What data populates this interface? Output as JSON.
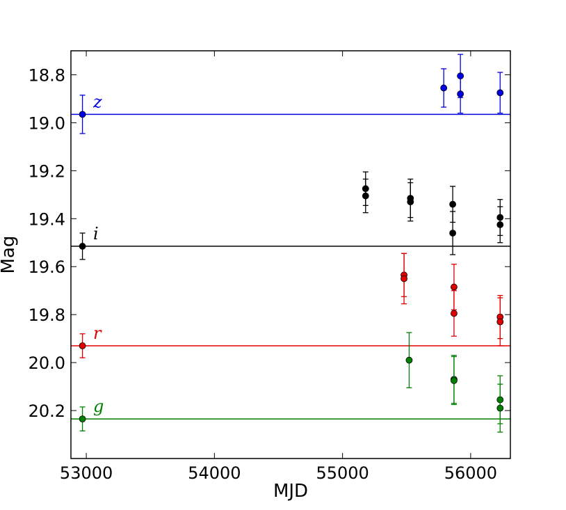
{
  "chart_data": {
    "type": "scatter",
    "title": "",
    "xlabel": "MJD",
    "ylabel": "Mag",
    "xlim": [
      52880,
      56310
    ],
    "ylim": [
      20.4,
      18.7
    ],
    "y_inverted": true,
    "grid": false,
    "legend": "none",
    "x_ticks": [
      53000,
      54000,
      55000,
      56000
    ],
    "x_tick_labels": [
      "53000",
      "54000",
      "55000",
      "56000"
    ],
    "y_ticks": [
      18.8,
      19.0,
      19.2,
      19.4,
      19.6,
      19.8,
      20.0,
      20.2
    ],
    "y_tick_labels": [
      "18.8",
      "19.0",
      "19.2",
      "19.4",
      "19.6",
      "19.8",
      "20.0",
      "20.2"
    ],
    "series": [
      {
        "name": "z",
        "color": "#0000e0",
        "reference_mag": 18.965,
        "points": [
          {
            "x": 52970,
            "y": 18.965,
            "err": 0.08
          },
          {
            "x": 55790,
            "y": 18.855,
            "err": 0.08
          },
          {
            "x": 55920,
            "y": 18.805,
            "err": 0.09
          },
          {
            "x": 55920,
            "y": 18.88,
            "err": 0.08
          },
          {
            "x": 56230,
            "y": 18.875,
            "err": 0.085
          }
        ]
      },
      {
        "name": "i",
        "color": "#000000",
        "reference_mag": 19.515,
        "points": [
          {
            "x": 52970,
            "y": 19.515,
            "err": 0.055
          },
          {
            "x": 55180,
            "y": 19.275,
            "err": 0.07
          },
          {
            "x": 55180,
            "y": 19.305,
            "err": 0.07
          },
          {
            "x": 55530,
            "y": 19.315,
            "err": 0.08
          },
          {
            "x": 55530,
            "y": 19.33,
            "err": 0.08
          },
          {
            "x": 55860,
            "y": 19.34,
            "err": 0.075
          },
          {
            "x": 55860,
            "y": 19.46,
            "err": 0.09
          },
          {
            "x": 56230,
            "y": 19.395,
            "err": 0.075
          },
          {
            "x": 56230,
            "y": 19.425,
            "err": 0.075
          }
        ]
      },
      {
        "name": "r",
        "color": "#e00000",
        "reference_mag": 19.93,
        "points": [
          {
            "x": 52970,
            "y": 19.93,
            "err": 0.05
          },
          {
            "x": 55480,
            "y": 19.635,
            "err": 0.09
          },
          {
            "x": 55480,
            "y": 19.65,
            "err": 0.105
          },
          {
            "x": 55870,
            "y": 19.685,
            "err": 0.095
          },
          {
            "x": 55870,
            "y": 19.795,
            "err": 0.095
          },
          {
            "x": 56230,
            "y": 19.81,
            "err": 0.09
          },
          {
            "x": 56230,
            "y": 19.83,
            "err": 0.1
          }
        ]
      },
      {
        "name": "g",
        "color": "#008000",
        "reference_mag": 20.235,
        "points": [
          {
            "x": 52970,
            "y": 20.235,
            "err": 0.05
          },
          {
            "x": 55520,
            "y": 19.99,
            "err": 0.115
          },
          {
            "x": 55870,
            "y": 20.07,
            "err": 0.1
          },
          {
            "x": 55870,
            "y": 20.075,
            "err": 0.1
          },
          {
            "x": 56230,
            "y": 20.155,
            "err": 0.1
          },
          {
            "x": 56230,
            "y": 20.19,
            "err": 0.1
          }
        ]
      }
    ]
  }
}
